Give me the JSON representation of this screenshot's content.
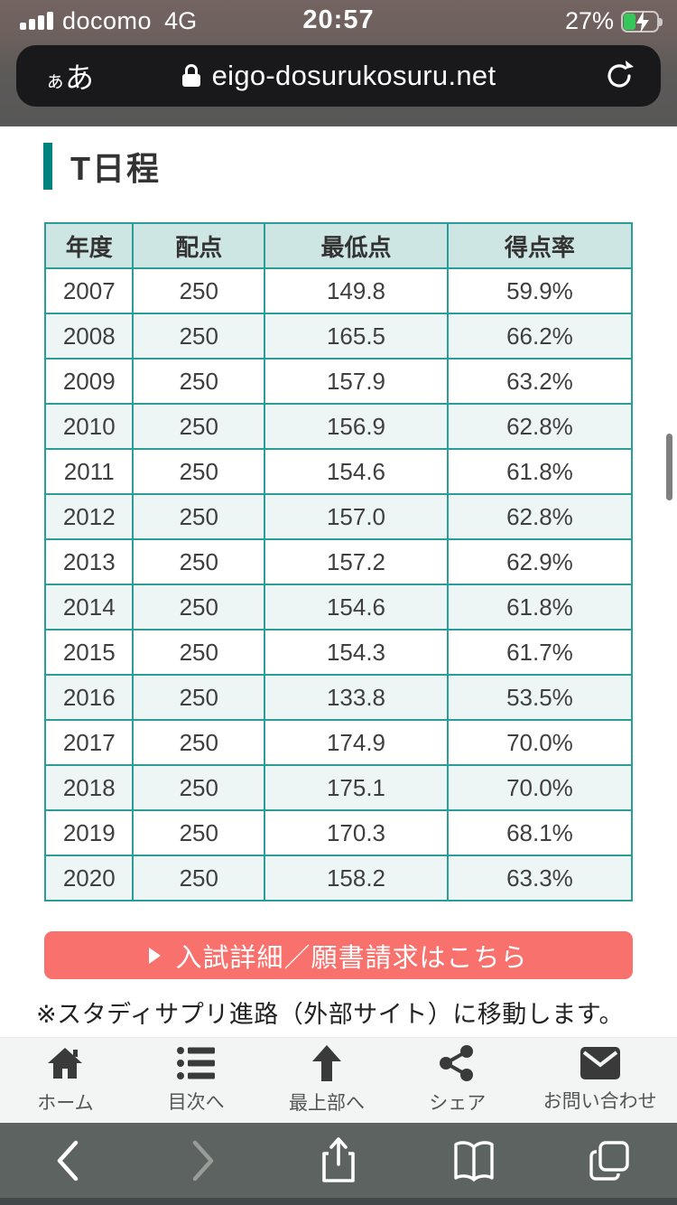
{
  "status_bar": {
    "carrier": "docomo",
    "network": "4G",
    "time": "20:57",
    "battery_percent": "27%"
  },
  "address_bar": {
    "text_size_control_small": "ぁ",
    "text_size_control_big": "あ",
    "url": "eigo-dosurukosuru.net"
  },
  "page": {
    "heading": "T日程",
    "table": {
      "headers": [
        "年度",
        "配点",
        "最低点",
        "得点率"
      ],
      "rows": [
        [
          "2007",
          "250",
          "149.8",
          "59.9%"
        ],
        [
          "2008",
          "250",
          "165.5",
          "66.2%"
        ],
        [
          "2009",
          "250",
          "157.9",
          "63.2%"
        ],
        [
          "2010",
          "250",
          "156.9",
          "62.8%"
        ],
        [
          "2011",
          "250",
          "154.6",
          "61.8%"
        ],
        [
          "2012",
          "250",
          "157.0",
          "62.8%"
        ],
        [
          "2013",
          "250",
          "157.2",
          "62.9%"
        ],
        [
          "2014",
          "250",
          "154.6",
          "61.8%"
        ],
        [
          "2015",
          "250",
          "154.3",
          "61.7%"
        ],
        [
          "2016",
          "250",
          "133.8",
          "53.5%"
        ],
        [
          "2017",
          "250",
          "174.9",
          "70.0%"
        ],
        [
          "2018",
          "250",
          "175.1",
          "70.0%"
        ],
        [
          "2019",
          "250",
          "170.3",
          "68.1%"
        ],
        [
          "2020",
          "250",
          "158.2",
          "63.3%"
        ]
      ]
    },
    "cta_label": "入試詳細／願書請求はこちら",
    "note": "※スタディサプリ進路（外部サイト）に移動します。"
  },
  "site_nav": {
    "items": [
      {
        "label": "ホーム",
        "icon": "home-icon"
      },
      {
        "label": "目次へ",
        "icon": "list-icon"
      },
      {
        "label": "最上部へ",
        "icon": "arrow-up-icon"
      },
      {
        "label": "シェア",
        "icon": "share-icon"
      },
      {
        "label": "お問い合わせ",
        "icon": "envelope-icon"
      }
    ]
  },
  "colors": {
    "accent-teal": "#2b9d98",
    "accent-teal-dark": "#00837e",
    "table-header-bg": "#cde5e3",
    "table-stripe": "#eef6f5",
    "button-red": "#f8716d",
    "battery-green": "#35c759"
  }
}
